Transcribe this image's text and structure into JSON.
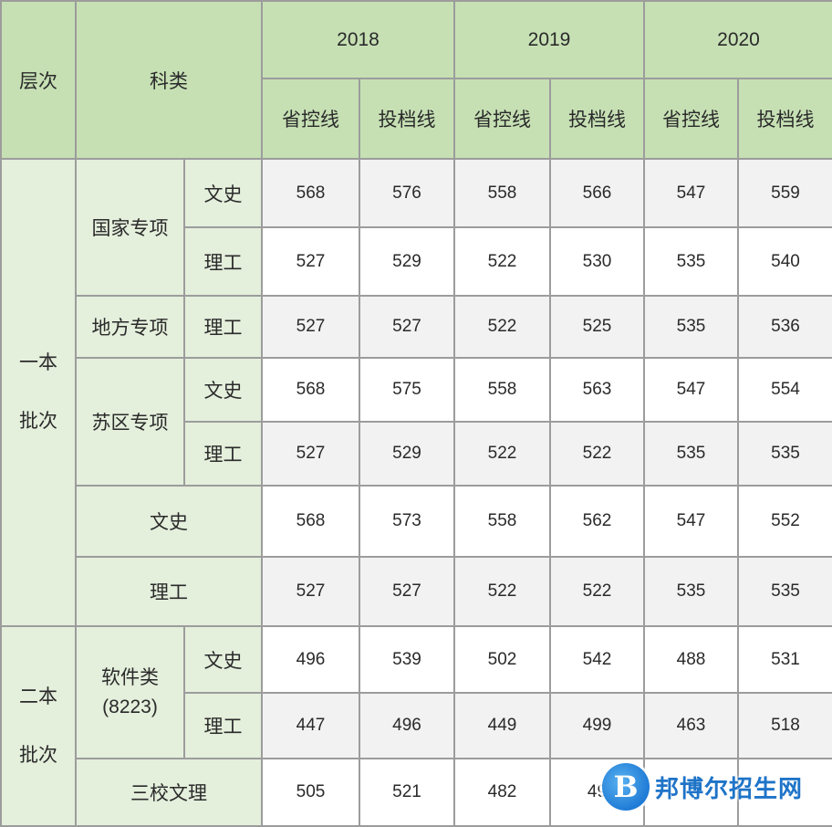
{
  "header": {
    "level": "层次",
    "category": "科类",
    "years": [
      "2018",
      "2019",
      "2020"
    ],
    "line_provincial": "省控线",
    "line_admission": "投档线"
  },
  "levels": {
    "first_line1": "一本",
    "first_line2": "批次",
    "second_line1": "二本",
    "second_line2": "批次"
  },
  "groups": {
    "national": "国家专项",
    "local": "地方专项",
    "suqu": "苏区专项",
    "software_line1": "软件类",
    "software_line2": "(8223)",
    "wenshi": "文史",
    "ligong": "理工",
    "sanxiao": "三校文理"
  },
  "subjects": {
    "wenshi": "文史",
    "ligong": "理工"
  },
  "rows": [
    {
      "values": [
        "568",
        "576",
        "558",
        "566",
        "547",
        "559"
      ]
    },
    {
      "values": [
        "527",
        "529",
        "522",
        "530",
        "535",
        "540"
      ]
    },
    {
      "values": [
        "527",
        "527",
        "522",
        "525",
        "535",
        "536"
      ]
    },
    {
      "values": [
        "568",
        "575",
        "558",
        "563",
        "547",
        "554"
      ]
    },
    {
      "values": [
        "527",
        "529",
        "522",
        "522",
        "535",
        "535"
      ]
    },
    {
      "values": [
        "568",
        "573",
        "558",
        "562",
        "547",
        "552"
      ]
    },
    {
      "values": [
        "527",
        "527",
        "522",
        "522",
        "535",
        "535"
      ]
    },
    {
      "values": [
        "496",
        "539",
        "502",
        "542",
        "488",
        "531"
      ]
    },
    {
      "values": [
        "447",
        "496",
        "449",
        "499",
        "463",
        "518"
      ]
    },
    {
      "values": [
        "505",
        "521",
        "482",
        "49",
        "",
        ""
      ]
    }
  ],
  "watermark": {
    "logo_letter": "B",
    "text": "邦博尔招生网"
  }
}
